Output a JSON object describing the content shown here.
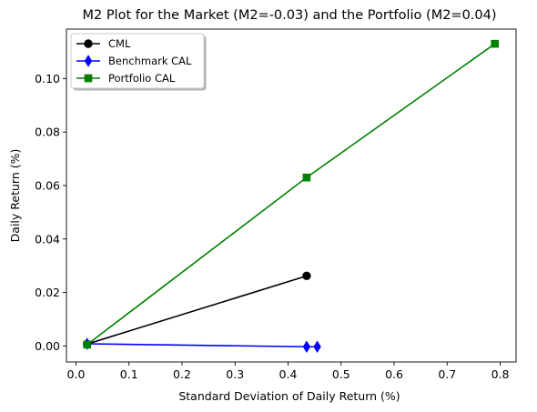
{
  "chart_data": {
    "type": "line",
    "title": "M2 Plot for the Market (M2=-0.03) and the Portfolio (M2=0.04)",
    "xlabel": "Standard Deviation of Daily Return (%)",
    "ylabel": "Daily Return (%)",
    "xlim": [
      -0.018,
      0.83
    ],
    "ylim": [
      -0.006,
      0.1185
    ],
    "xticks": [
      0.0,
      0.1,
      0.2,
      0.3,
      0.4,
      0.5,
      0.6,
      0.7,
      0.8
    ],
    "xtick_labels": [
      "0.0",
      "0.1",
      "0.2",
      "0.3",
      "0.4",
      "0.5",
      "0.6",
      "0.7",
      "0.8"
    ],
    "yticks": [
      0.0,
      0.02,
      0.04,
      0.06,
      0.08,
      0.1
    ],
    "ytick_labels": [
      "0.00",
      "0.02",
      "0.04",
      "0.06",
      "0.08",
      "0.10"
    ],
    "grid": false,
    "legend_position": "top-left",
    "series": [
      {
        "name": "CML",
        "color": "#000000",
        "marker": "circle",
        "x": [
          0.021,
          0.435
        ],
        "y": [
          0.0007,
          0.0262
        ]
      },
      {
        "name": "Benchmark CAL",
        "color": "#0000ff",
        "marker": "diamond",
        "x": [
          0.021,
          0.435,
          0.455
        ],
        "y": [
          0.0008,
          -0.0003,
          -0.0003
        ]
      },
      {
        "name": "Portfolio CAL",
        "color": "#008000",
        "marker": "square",
        "x": [
          0.021,
          0.435,
          0.79
        ],
        "y": [
          0.0005,
          0.063,
          0.113
        ]
      }
    ]
  }
}
